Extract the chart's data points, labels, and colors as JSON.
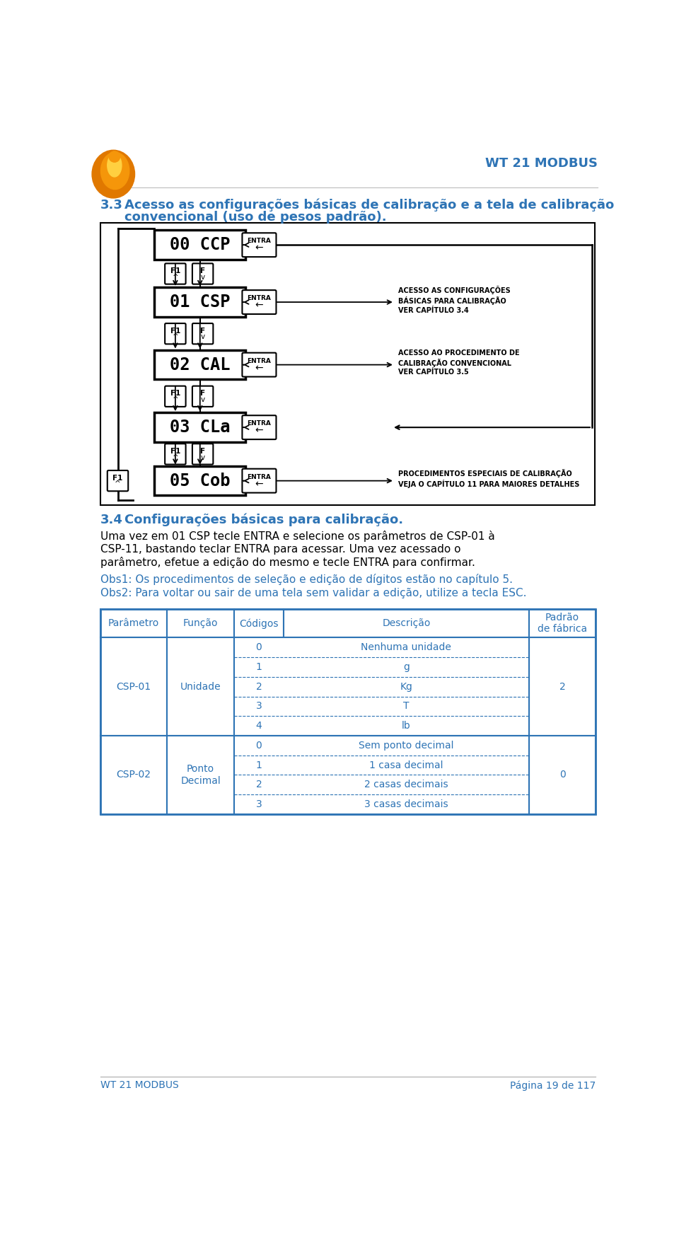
{
  "bg_color": "#ffffff",
  "blue_color": "#2e74b5",
  "black_color": "#000000",
  "header_title": "WT 21 MODBUS",
  "section33_num": "3.3",
  "section33_line1": "Acesso as configurações básicas de calibração e a tela de calibração",
  "section33_line2": "convencional (uso de pesos padrão).",
  "section34_num": "3.4",
  "section34_text": "Configurações básicas para calibração.",
  "para1_line1": "Uma vez em 01 CSP tecle ENTRA e selecione os parâmetros de CSP-01 à",
  "para1_line2": "CSP-11, bastando teclar ENTRA para acessar. Uma vez acessado o",
  "para1_line3": "parâmetro, efetue a edição do mesmo e tecle ENTRA para confirmar.",
  "obs1": "Obs1: Os procedimentos de seleção e edição de dígitos estão no capítulo 5.",
  "obs2": "Obs2: Para voltar ou sair de uma tela sem validar a edição, utilize a tecla ESC.",
  "footer_left": "WT 21 MODBUS",
  "footer_right": "Página 19 de 117",
  "diagram_displays": [
    "00 CCP",
    "01 CSP",
    "02 CAL",
    "03 CLa",
    "05 Cob"
  ],
  "diagram_notes": [
    "",
    "ACESSO AS CONFIGURAÇÕES\nBÁSICAS PARA CALIBRAÇÃO\nVER CAPÍTULO 3.4",
    "ACESSO AO PROCEDIMENTO DE\nCALIBRAÇÃO CONVENCIONAL\nVER CAPÍTULO 3.5",
    "",
    "PROCEDIMENTOS ESPECIAIS DE CALIBRAÇÃO\nVEJA O CAPÍTULO 11 PARA MAIORES DETALHES"
  ],
  "table_headers": [
    "Parâmetro",
    "Função",
    "Códigos",
    "Descrição",
    "Padrão\nde fábrica"
  ],
  "csp01_codes": [
    "0",
    "1",
    "2",
    "3",
    "4"
  ],
  "csp01_descs": [
    "Nenhuma unidade",
    "g",
    "Kg",
    "T",
    "lb"
  ],
  "csp01_padrao": "2",
  "csp02_codes": [
    "0",
    "1",
    "2",
    "3"
  ],
  "csp02_descs": [
    "Sem ponto decimal",
    "1 casa decimal",
    "2 casas decimais",
    "3 casas decimais"
  ],
  "csp02_padrao": "0"
}
